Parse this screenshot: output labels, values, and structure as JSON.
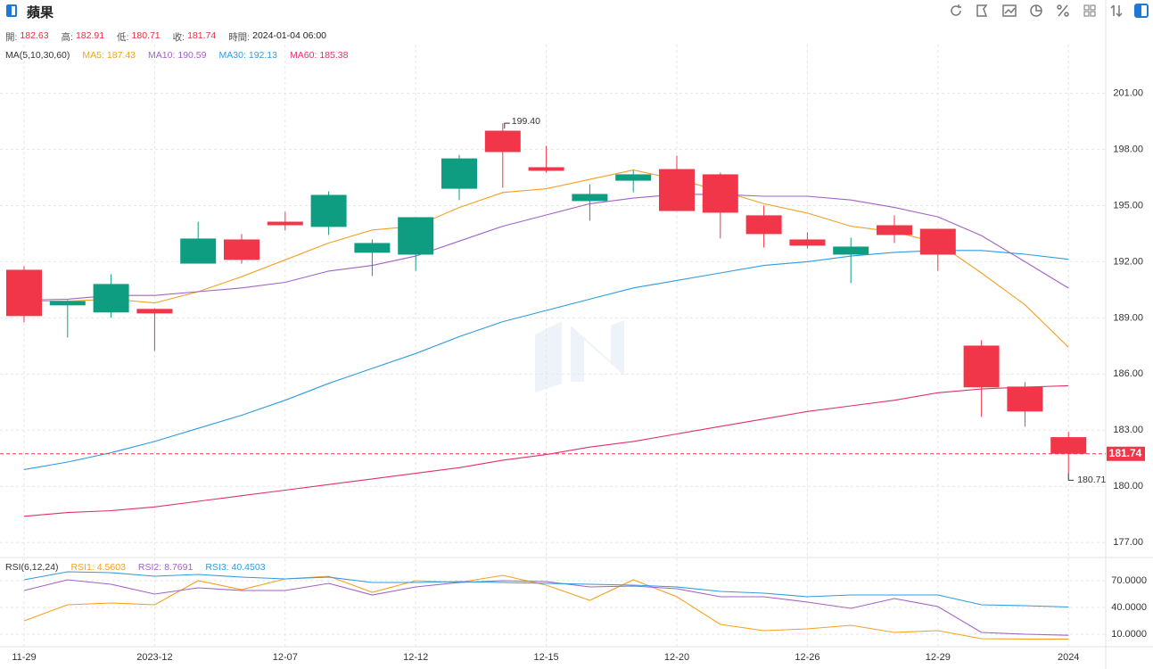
{
  "header": {
    "title": "蘋果",
    "info": [
      {
        "label": "開:",
        "value": 182.63
      },
      {
        "label": "高:",
        "value": 182.91
      },
      {
        "label": "低:",
        "value": 180.71
      },
      {
        "label": "收:",
        "value": 181.74
      },
      {
        "label": "時間:",
        "value": "2024-01-04 06:00"
      }
    ]
  },
  "chart_data": [
    {
      "type": "candlestick",
      "indicator": "MA(5,10,30,60)",
      "categories": [
        "11-29",
        null,
        null,
        "2023-12",
        null,
        null,
        "12-07",
        null,
        null,
        "12-12",
        null,
        null,
        "12-15",
        null,
        null,
        "12-20",
        null,
        null,
        "12-26",
        null,
        null,
        "12-29",
        null,
        null,
        "2024"
      ],
      "open": [
        191.57,
        189.67,
        189.29,
        189.48,
        191.9,
        193.19,
        194.14,
        193.86,
        192.48,
        192.38,
        195.9,
        199.0,
        197.05,
        195.24,
        196.33,
        196.95,
        196.67,
        194.48,
        193.19,
        192.38,
        193.95,
        193.76,
        187.52,
        185.33,
        182.63
      ],
      "high": [
        191.76,
        189.95,
        191.33,
        189.5,
        194.14,
        193.48,
        194.67,
        195.76,
        193.19,
        194.38,
        197.71,
        199.4,
        198.19,
        196.14,
        196.9,
        197.67,
        196.76,
        195.0,
        193.57,
        193.29,
        194.48,
        193.76,
        187.81,
        185.57,
        182.91
      ],
      "low": [
        188.76,
        187.95,
        189.0,
        187.24,
        191.9,
        191.9,
        193.67,
        193.43,
        191.24,
        191.52,
        195.29,
        195.95,
        196.76,
        194.19,
        195.71,
        194.71,
        193.24,
        192.76,
        192.71,
        190.86,
        193.0,
        191.52,
        183.71,
        183.19,
        180.71
      ],
      "close": [
        189.1,
        189.9,
        190.81,
        189.24,
        193.24,
        192.1,
        193.95,
        195.57,
        193.0,
        194.38,
        197.52,
        197.86,
        196.86,
        195.62,
        196.67,
        194.71,
        194.62,
        193.48,
        192.86,
        192.81,
        193.43,
        192.38,
        185.29,
        184.0,
        181.74
      ],
      "up_color": "#0f9d82",
      "down_color": "#f2364a",
      "series": [
        {
          "name": "MA5:",
          "color": "#f5a020",
          "values": [
            189.9,
            189.9,
            190.0,
            189.8,
            190.4,
            191.2,
            192.1,
            193.0,
            193.7,
            193.9,
            194.9,
            195.7,
            195.9,
            196.4,
            196.9,
            196.4,
            195.8,
            195.1,
            194.6,
            193.9,
            193.6,
            193.0,
            191.4,
            189.7,
            187.43
          ]
        },
        {
          "name": "MA10:",
          "color": "#a262c6",
          "values": [
            189.95,
            190.0,
            190.2,
            190.2,
            190.4,
            190.6,
            190.9,
            191.5,
            191.8,
            192.3,
            193.1,
            193.9,
            194.5,
            195.1,
            195.4,
            195.6,
            195.6,
            195.5,
            195.5,
            195.3,
            194.9,
            194.4,
            193.4,
            192.0,
            190.59
          ]
        },
        {
          "name": "MA30:",
          "color": "#2f9be0",
          "values": [
            180.9,
            181.3,
            181.8,
            182.4,
            183.1,
            183.8,
            184.6,
            185.5,
            186.3,
            187.1,
            188.0,
            188.8,
            189.4,
            190.0,
            190.6,
            191.0,
            191.4,
            191.8,
            192.0,
            192.3,
            192.5,
            192.6,
            192.6,
            192.4,
            192.13
          ]
        },
        {
          "name": "MA60:",
          "color": "#e0306e",
          "values": [
            178.4,
            178.6,
            178.7,
            178.9,
            179.2,
            179.5,
            179.8,
            180.1,
            180.4,
            180.7,
            181.0,
            181.4,
            181.7,
            182.1,
            182.4,
            182.8,
            183.2,
            183.6,
            184.0,
            184.3,
            184.6,
            185.0,
            185.2,
            185.3,
            185.38
          ]
        }
      ],
      "ylim": [
        176.2,
        203.6
      ],
      "yticks": [
        {
          "value": 201,
          "label": "201.00"
        },
        {
          "value": 198,
          "label": "198.00"
        },
        {
          "value": 195,
          "label": "195.00"
        },
        {
          "value": 192,
          "label": "192.00"
        },
        {
          "value": 189,
          "label": "189.00"
        },
        {
          "value": 186,
          "label": "186.00"
        },
        {
          "value": 183,
          "label": "183.00"
        },
        {
          "value": 180,
          "label": "180.00"
        },
        {
          "value": 177,
          "label": "177.00"
        }
      ],
      "grid": true,
      "last_price": 181.74,
      "high_marker": {
        "value": 199.4,
        "label": "199.40"
      },
      "low_marker": 180.71
    },
    {
      "type": "line",
      "indicator": "RSI(6,12,24)",
      "series": [
        {
          "name": "RSI1:",
          "color": "#f5a020",
          "values": [
            25,
            43,
            45,
            43,
            70,
            60,
            72,
            75,
            57,
            70,
            68,
            76,
            65,
            48,
            71,
            52,
            21,
            14,
            16,
            20,
            12,
            14,
            5,
            4.6,
            4.5603
          ]
        },
        {
          "name": "RSI2:",
          "color": "#a262c6",
          "values": [
            59,
            71,
            66,
            55,
            62,
            59,
            59,
            67,
            54,
            63,
            68,
            70,
            69,
            63,
            64,
            61,
            52,
            52,
            46,
            39,
            50,
            41,
            12,
            10,
            8.7691
          ]
        },
        {
          "name": "RSI3:",
          "color": "#2f9be0",
          "values": [
            71,
            80,
            79,
            75,
            77,
            74,
            72,
            74,
            68,
            68,
            69,
            68,
            67,
            66,
            65,
            63,
            58,
            56,
            52,
            54,
            54,
            54,
            43,
            42,
            40.4503
          ]
        }
      ],
      "ylim": [
        -4,
        96
      ],
      "yticks": [
        {
          "value": 70,
          "label": "70.0000"
        },
        {
          "value": 40,
          "label": "40.0000"
        },
        {
          "value": 10,
          "label": "10.0000"
        }
      ]
    }
  ]
}
